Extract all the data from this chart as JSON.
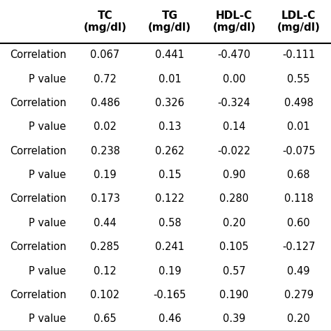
{
  "col_headers": [
    "TC\n(mg/dl)",
    "TG\n(mg/dl)",
    "HDL-C\n(mg/dl)",
    "LDL-C\n(mg/dl)"
  ],
  "row_labels": [
    "Correlation",
    "P value",
    "Correlation",
    "P value",
    "Correlation",
    "P value",
    "Correlation",
    "P value",
    "Correlation",
    "P value",
    "Correlation",
    "P value"
  ],
  "cell_data": [
    [
      "0.067",
      "0.441",
      "-0.470",
      "-0.111"
    ],
    [
      "0.72",
      "0.01",
      "0.00",
      "0.55"
    ],
    [
      "0.486",
      "0.326",
      "-0.324",
      "0.498"
    ],
    [
      "0.02",
      "0.13",
      "0.14",
      "0.01"
    ],
    [
      "0.238",
      "0.262",
      "-0.022",
      "-0.075"
    ],
    [
      "0.19",
      "0.15",
      "0.90",
      "0.68"
    ],
    [
      "0.173",
      "0.122",
      "0.280",
      "0.118"
    ],
    [
      "0.44",
      "0.58",
      "0.20",
      "0.60"
    ],
    [
      "0.285",
      "0.241",
      "0.105",
      "-0.127"
    ],
    [
      "0.12",
      "0.19",
      "0.57",
      "0.49"
    ],
    [
      "0.102",
      "-0.165",
      "0.190",
      "0.279"
    ],
    [
      "0.65",
      "0.46",
      "0.39",
      "0.20"
    ]
  ],
  "background_color": "#ffffff",
  "header_fontsize": 11,
  "cell_fontsize": 10.5,
  "row_label_fontsize": 10.5,
  "figsize": [
    4.74,
    4.74
  ],
  "dpi": 100
}
